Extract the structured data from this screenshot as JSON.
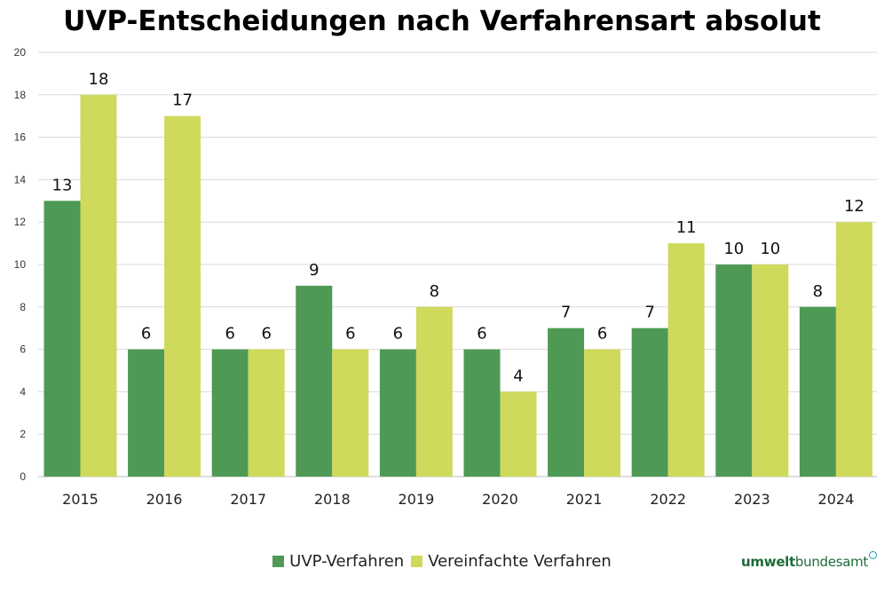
{
  "chart_data": {
    "type": "bar",
    "title": "UVP-Entscheidungen nach Verfahrensart absolut",
    "categories": [
      "2015",
      "2016",
      "2017",
      "2018",
      "2019",
      "2020",
      "2021",
      "2022",
      "2023",
      "2024"
    ],
    "series": [
      {
        "name": "UVP-Verfahren",
        "color": "#4e9a55",
        "values": [
          13,
          6,
          6,
          9,
          6,
          6,
          7,
          7,
          10,
          8
        ]
      },
      {
        "name": "Vereinfachte Verfahren",
        "color": "#cfd95b",
        "values": [
          18,
          17,
          6,
          6,
          8,
          4,
          6,
          11,
          10,
          12
        ]
      }
    ],
    "xlabel": "",
    "ylabel": "",
    "ylim": [
      0,
      20
    ],
    "yticks": [
      0,
      2,
      4,
      6,
      8,
      10,
      12,
      14,
      16,
      18,
      20
    ],
    "grid": true,
    "legend": "bottom-center"
  },
  "logo": {
    "part1": "umwelt",
    "part2": "bundesamt"
  }
}
